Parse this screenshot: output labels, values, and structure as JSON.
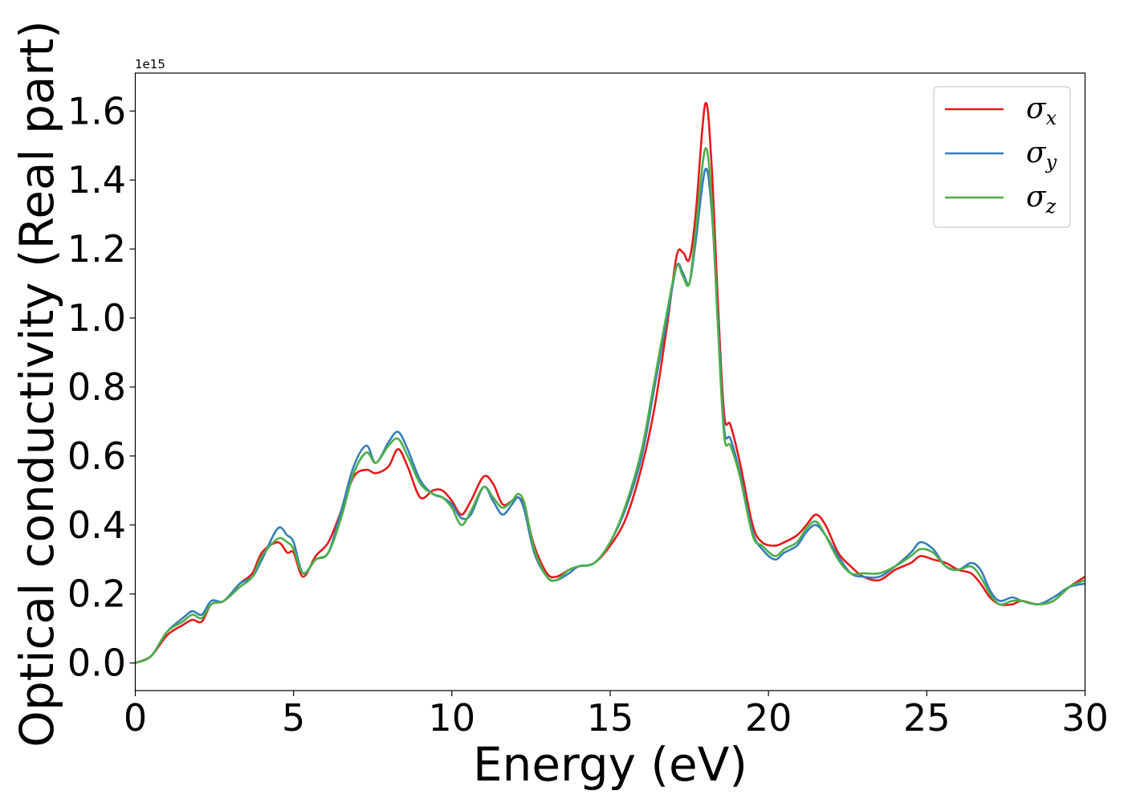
{
  "chart_data": {
    "type": "line",
    "xlabel": "Energy (eV)",
    "ylabel": "Optical conductivity (Real part)",
    "y_offset_label": "1e15",
    "xlim": [
      0,
      30
    ],
    "ylim": [
      -0.08,
      1.71
    ],
    "y_unit_scale": 1000000000000000.0,
    "x_ticks": [
      0,
      5,
      10,
      15,
      20,
      25,
      30
    ],
    "x_tick_labels": [
      "0",
      "5",
      "10",
      "15",
      "20",
      "25",
      "30"
    ],
    "y_ticks": [
      0.0,
      0.2,
      0.4,
      0.6,
      0.8,
      1.0,
      1.2,
      1.4,
      1.6
    ],
    "y_tick_labels": [
      "0.0",
      "0.2",
      "0.4",
      "0.6",
      "0.8",
      "1.0",
      "1.2",
      "1.4",
      "1.6"
    ],
    "grid": false,
    "legend_position": "top-right",
    "x": [
      0,
      0.5,
      1.0,
      1.5,
      1.8,
      2.1,
      2.4,
      2.8,
      3.3,
      3.7,
      4.0,
      4.5,
      4.8,
      5.0,
      5.3,
      5.7,
      6.1,
      6.5,
      6.9,
      7.3,
      7.6,
      8.0,
      8.3,
      8.6,
      9.0,
      9.4,
      9.7,
      10.0,
      10.3,
      10.6,
      11.0,
      11.3,
      11.6,
      11.9,
      12.1,
      12.3,
      12.6,
      13.0,
      13.3,
      13.7,
      14.0,
      14.5,
      15.0,
      15.5,
      16.0,
      16.4,
      16.8,
      17.1,
      17.3,
      17.5,
      17.7,
      18.0,
      18.2,
      18.4,
      18.6,
      18.8,
      19.1,
      19.5,
      19.8,
      20.2,
      20.5,
      20.9,
      21.2,
      21.5,
      21.8,
      22.2,
      22.6,
      23.0,
      23.5,
      24.0,
      24.5,
      24.8,
      25.2,
      25.6,
      26.0,
      26.4,
      26.7,
      27.0,
      27.3,
      27.7,
      28.0,
      28.5,
      29.0,
      29.5,
      30.0
    ],
    "series": [
      {
        "name": "σx",
        "color": "#e41a1c",
        "values": [
          0.0,
          0.02,
          0.08,
          0.11,
          0.125,
          0.12,
          0.17,
          0.18,
          0.23,
          0.26,
          0.32,
          0.35,
          0.32,
          0.32,
          0.25,
          0.31,
          0.35,
          0.44,
          0.54,
          0.56,
          0.55,
          0.57,
          0.62,
          0.57,
          0.48,
          0.5,
          0.5,
          0.47,
          0.43,
          0.47,
          0.54,
          0.52,
          0.46,
          0.47,
          0.48,
          0.45,
          0.34,
          0.26,
          0.25,
          0.27,
          0.28,
          0.29,
          0.34,
          0.42,
          0.57,
          0.74,
          0.98,
          1.18,
          1.19,
          1.17,
          1.3,
          1.62,
          1.45,
          1.05,
          0.72,
          0.69,
          0.58,
          0.4,
          0.35,
          0.34,
          0.35,
          0.37,
          0.4,
          0.43,
          0.4,
          0.32,
          0.28,
          0.25,
          0.24,
          0.27,
          0.29,
          0.31,
          0.3,
          0.29,
          0.27,
          0.26,
          0.23,
          0.19,
          0.17,
          0.17,
          0.18,
          0.17,
          0.18,
          0.22,
          0.25
        ]
      },
      {
        "name": "σy",
        "color": "#377eb8",
        "values": [
          0.0,
          0.02,
          0.09,
          0.13,
          0.15,
          0.14,
          0.18,
          0.18,
          0.23,
          0.25,
          0.3,
          0.39,
          0.37,
          0.35,
          0.26,
          0.3,
          0.32,
          0.44,
          0.57,
          0.63,
          0.58,
          0.64,
          0.67,
          0.62,
          0.53,
          0.49,
          0.48,
          0.46,
          0.42,
          0.43,
          0.51,
          0.47,
          0.43,
          0.46,
          0.48,
          0.44,
          0.32,
          0.25,
          0.24,
          0.26,
          0.28,
          0.29,
          0.35,
          0.45,
          0.6,
          0.8,
          1.0,
          1.15,
          1.13,
          1.1,
          1.22,
          1.43,
          1.32,
          1.0,
          0.68,
          0.65,
          0.55,
          0.38,
          0.33,
          0.3,
          0.32,
          0.34,
          0.38,
          0.4,
          0.37,
          0.31,
          0.26,
          0.25,
          0.25,
          0.28,
          0.32,
          0.35,
          0.33,
          0.28,
          0.27,
          0.29,
          0.27,
          0.21,
          0.18,
          0.19,
          0.18,
          0.17,
          0.19,
          0.22,
          0.23
        ]
      },
      {
        "name": "σz",
        "color": "#4daf4a",
        "values": [
          0.0,
          0.02,
          0.09,
          0.12,
          0.14,
          0.13,
          0.17,
          0.18,
          0.22,
          0.25,
          0.31,
          0.36,
          0.35,
          0.33,
          0.26,
          0.3,
          0.32,
          0.42,
          0.55,
          0.61,
          0.58,
          0.63,
          0.65,
          0.6,
          0.52,
          0.49,
          0.48,
          0.45,
          0.4,
          0.44,
          0.51,
          0.48,
          0.45,
          0.47,
          0.49,
          0.46,
          0.33,
          0.25,
          0.24,
          0.27,
          0.28,
          0.29,
          0.35,
          0.46,
          0.62,
          0.82,
          1.02,
          1.15,
          1.12,
          1.1,
          1.25,
          1.49,
          1.35,
          0.98,
          0.66,
          0.63,
          0.54,
          0.37,
          0.34,
          0.31,
          0.33,
          0.35,
          0.39,
          0.41,
          0.37,
          0.3,
          0.26,
          0.26,
          0.26,
          0.28,
          0.31,
          0.33,
          0.32,
          0.28,
          0.27,
          0.28,
          0.25,
          0.2,
          0.17,
          0.18,
          0.18,
          0.17,
          0.18,
          0.22,
          0.24
        ]
      }
    ]
  }
}
